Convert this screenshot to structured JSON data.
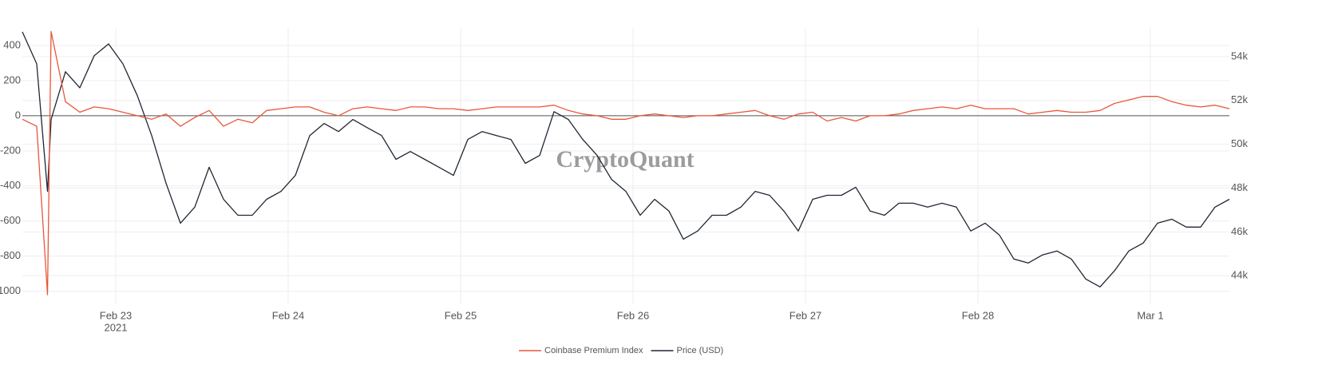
{
  "chart_data": {
    "type": "line",
    "watermark": "CryptoQuant",
    "x": [
      "2021-02-22T11:00",
      "2021-02-22T13:00",
      "2021-02-22T14:30",
      "2021-02-22T15:00",
      "2021-02-22T17:00",
      "2021-02-22T19:00",
      "2021-02-22T21:00",
      "2021-02-22T23:00",
      "2021-02-23T01:00",
      "2021-02-23T03:00",
      "2021-02-23T05:00",
      "2021-02-23T07:00",
      "2021-02-23T09:00",
      "2021-02-23T11:00",
      "2021-02-23T13:00",
      "2021-02-23T15:00",
      "2021-02-23T17:00",
      "2021-02-23T19:00",
      "2021-02-23T21:00",
      "2021-02-23T23:00",
      "2021-02-24T01:00",
      "2021-02-24T03:00",
      "2021-02-24T05:00",
      "2021-02-24T07:00",
      "2021-02-24T09:00",
      "2021-02-24T11:00",
      "2021-02-24T13:00",
      "2021-02-24T15:00",
      "2021-02-24T17:00",
      "2021-02-24T19:00",
      "2021-02-24T21:00",
      "2021-02-24T23:00",
      "2021-02-25T01:00",
      "2021-02-25T03:00",
      "2021-02-25T05:00",
      "2021-02-25T07:00",
      "2021-02-25T09:00",
      "2021-02-25T11:00",
      "2021-02-25T13:00",
      "2021-02-25T15:00",
      "2021-02-25T17:00",
      "2021-02-25T19:00",
      "2021-02-25T21:00",
      "2021-02-25T23:00",
      "2021-02-26T01:00",
      "2021-02-26T03:00",
      "2021-02-26T05:00",
      "2021-02-26T07:00",
      "2021-02-26T09:00",
      "2021-02-26T11:00",
      "2021-02-26T13:00",
      "2021-02-26T15:00",
      "2021-02-26T17:00",
      "2021-02-26T19:00",
      "2021-02-26T21:00",
      "2021-02-26T23:00",
      "2021-02-27T01:00",
      "2021-02-27T03:00",
      "2021-02-27T05:00",
      "2021-02-27T07:00",
      "2021-02-27T09:00",
      "2021-02-27T11:00",
      "2021-02-27T13:00",
      "2021-02-27T15:00",
      "2021-02-27T17:00",
      "2021-02-27T19:00",
      "2021-02-27T21:00",
      "2021-02-27T23:00",
      "2021-02-28T01:00",
      "2021-02-28T03:00",
      "2021-02-28T05:00",
      "2021-02-28T07:00",
      "2021-02-28T09:00",
      "2021-02-28T11:00",
      "2021-02-28T13:00",
      "2021-02-28T15:00",
      "2021-02-28T17:00",
      "2021-02-28T19:00",
      "2021-02-28T21:00",
      "2021-02-28T23:00",
      "2021-03-01T01:00",
      "2021-03-01T03:00",
      "2021-03-01T05:00",
      "2021-03-01T07:00",
      "2021-03-01T09:00",
      "2021-03-01T11:00"
    ],
    "series": [
      {
        "name": "Coinbase Premium Index",
        "color": "#e8573b",
        "axis": "y",
        "values": [
          -20,
          -60,
          -1020,
          480,
          80,
          20,
          50,
          40,
          20,
          0,
          -20,
          10,
          -60,
          -10,
          30,
          -60,
          -20,
          -40,
          30,
          40,
          50,
          50,
          20,
          0,
          40,
          50,
          40,
          30,
          50,
          50,
          40,
          40,
          30,
          40,
          50,
          50,
          50,
          50,
          60,
          30,
          10,
          0,
          -20,
          -20,
          0,
          10,
          0,
          -10,
          0,
          0,
          10,
          20,
          30,
          0,
          -20,
          10,
          20,
          -30,
          -10,
          -30,
          0,
          0,
          10,
          30,
          40,
          50,
          40,
          60,
          40,
          40,
          40,
          10,
          20,
          30,
          20,
          20,
          30,
          70,
          90,
          110,
          110,
          80,
          60,
          50,
          60,
          40
        ]
      },
      {
        "name": "Price (USD)",
        "color": "#1f2733",
        "axis": "y2",
        "values": [
          55130,
          53670,
          47850,
          51130,
          53310,
          52580,
          54040,
          54580,
          53670,
          52220,
          50400,
          48220,
          46400,
          47130,
          48950,
          47490,
          46760,
          46760,
          47490,
          47850,
          48580,
          50400,
          50950,
          50580,
          51130,
          50760,
          50400,
          49310,
          49670,
          49310,
          48950,
          48580,
          50220,
          50580,
          50400,
          50220,
          49130,
          49490,
          51490,
          51130,
          50220,
          49490,
          48400,
          47850,
          46760,
          47490,
          46950,
          45670,
          46040,
          46760,
          46760,
          47130,
          47850,
          47670,
          46950,
          46040,
          47490,
          47670,
          47670,
          48040,
          46950,
          46760,
          47310,
          47310,
          47130,
          47310,
          47130,
          46040,
          46400,
          45850,
          44760,
          44580,
          44950,
          45130,
          44760,
          43850,
          43490,
          44220,
          45130,
          45490,
          46400,
          46580,
          46220,
          46220,
          47130,
          47490
        ]
      }
    ],
    "xlim": [
      "2021-02-22T11:00",
      "2021-03-01T11:00"
    ],
    "xticks": [
      {
        "value": "2021-02-23T00:00",
        "label": "Feb 23"
      },
      {
        "value": "2021-02-24T00:00",
        "label": "Feb 24"
      },
      {
        "value": "2021-02-25T00:00",
        "label": "Feb 25"
      },
      {
        "value": "2021-02-26T00:00",
        "label": "Feb 26"
      },
      {
        "value": "2021-02-27T00:00",
        "label": "Feb 27"
      },
      {
        "value": "2021-02-28T00:00",
        "label": "Feb 28"
      },
      {
        "value": "2021-03-01T00:00",
        "label": "Mar 1"
      }
    ],
    "xtick_year": "2021",
    "ylim": [
      -1070,
      500
    ],
    "yticks": [
      -1000,
      -800,
      -600,
      -400,
      -200,
      0,
      200,
      400
    ],
    "y2lim": [
      42730,
      55310
    ],
    "y2ticks": [
      {
        "value": 44000,
        "label": "44k"
      },
      {
        "value": 46000,
        "label": "46k"
      },
      {
        "value": 48000,
        "label": "48k"
      },
      {
        "value": 50000,
        "label": "50k"
      },
      {
        "value": 52000,
        "label": "52k"
      },
      {
        "value": 54000,
        "label": "54k"
      }
    ],
    "grid": true,
    "zeroline": true,
    "legend": "bottom"
  }
}
